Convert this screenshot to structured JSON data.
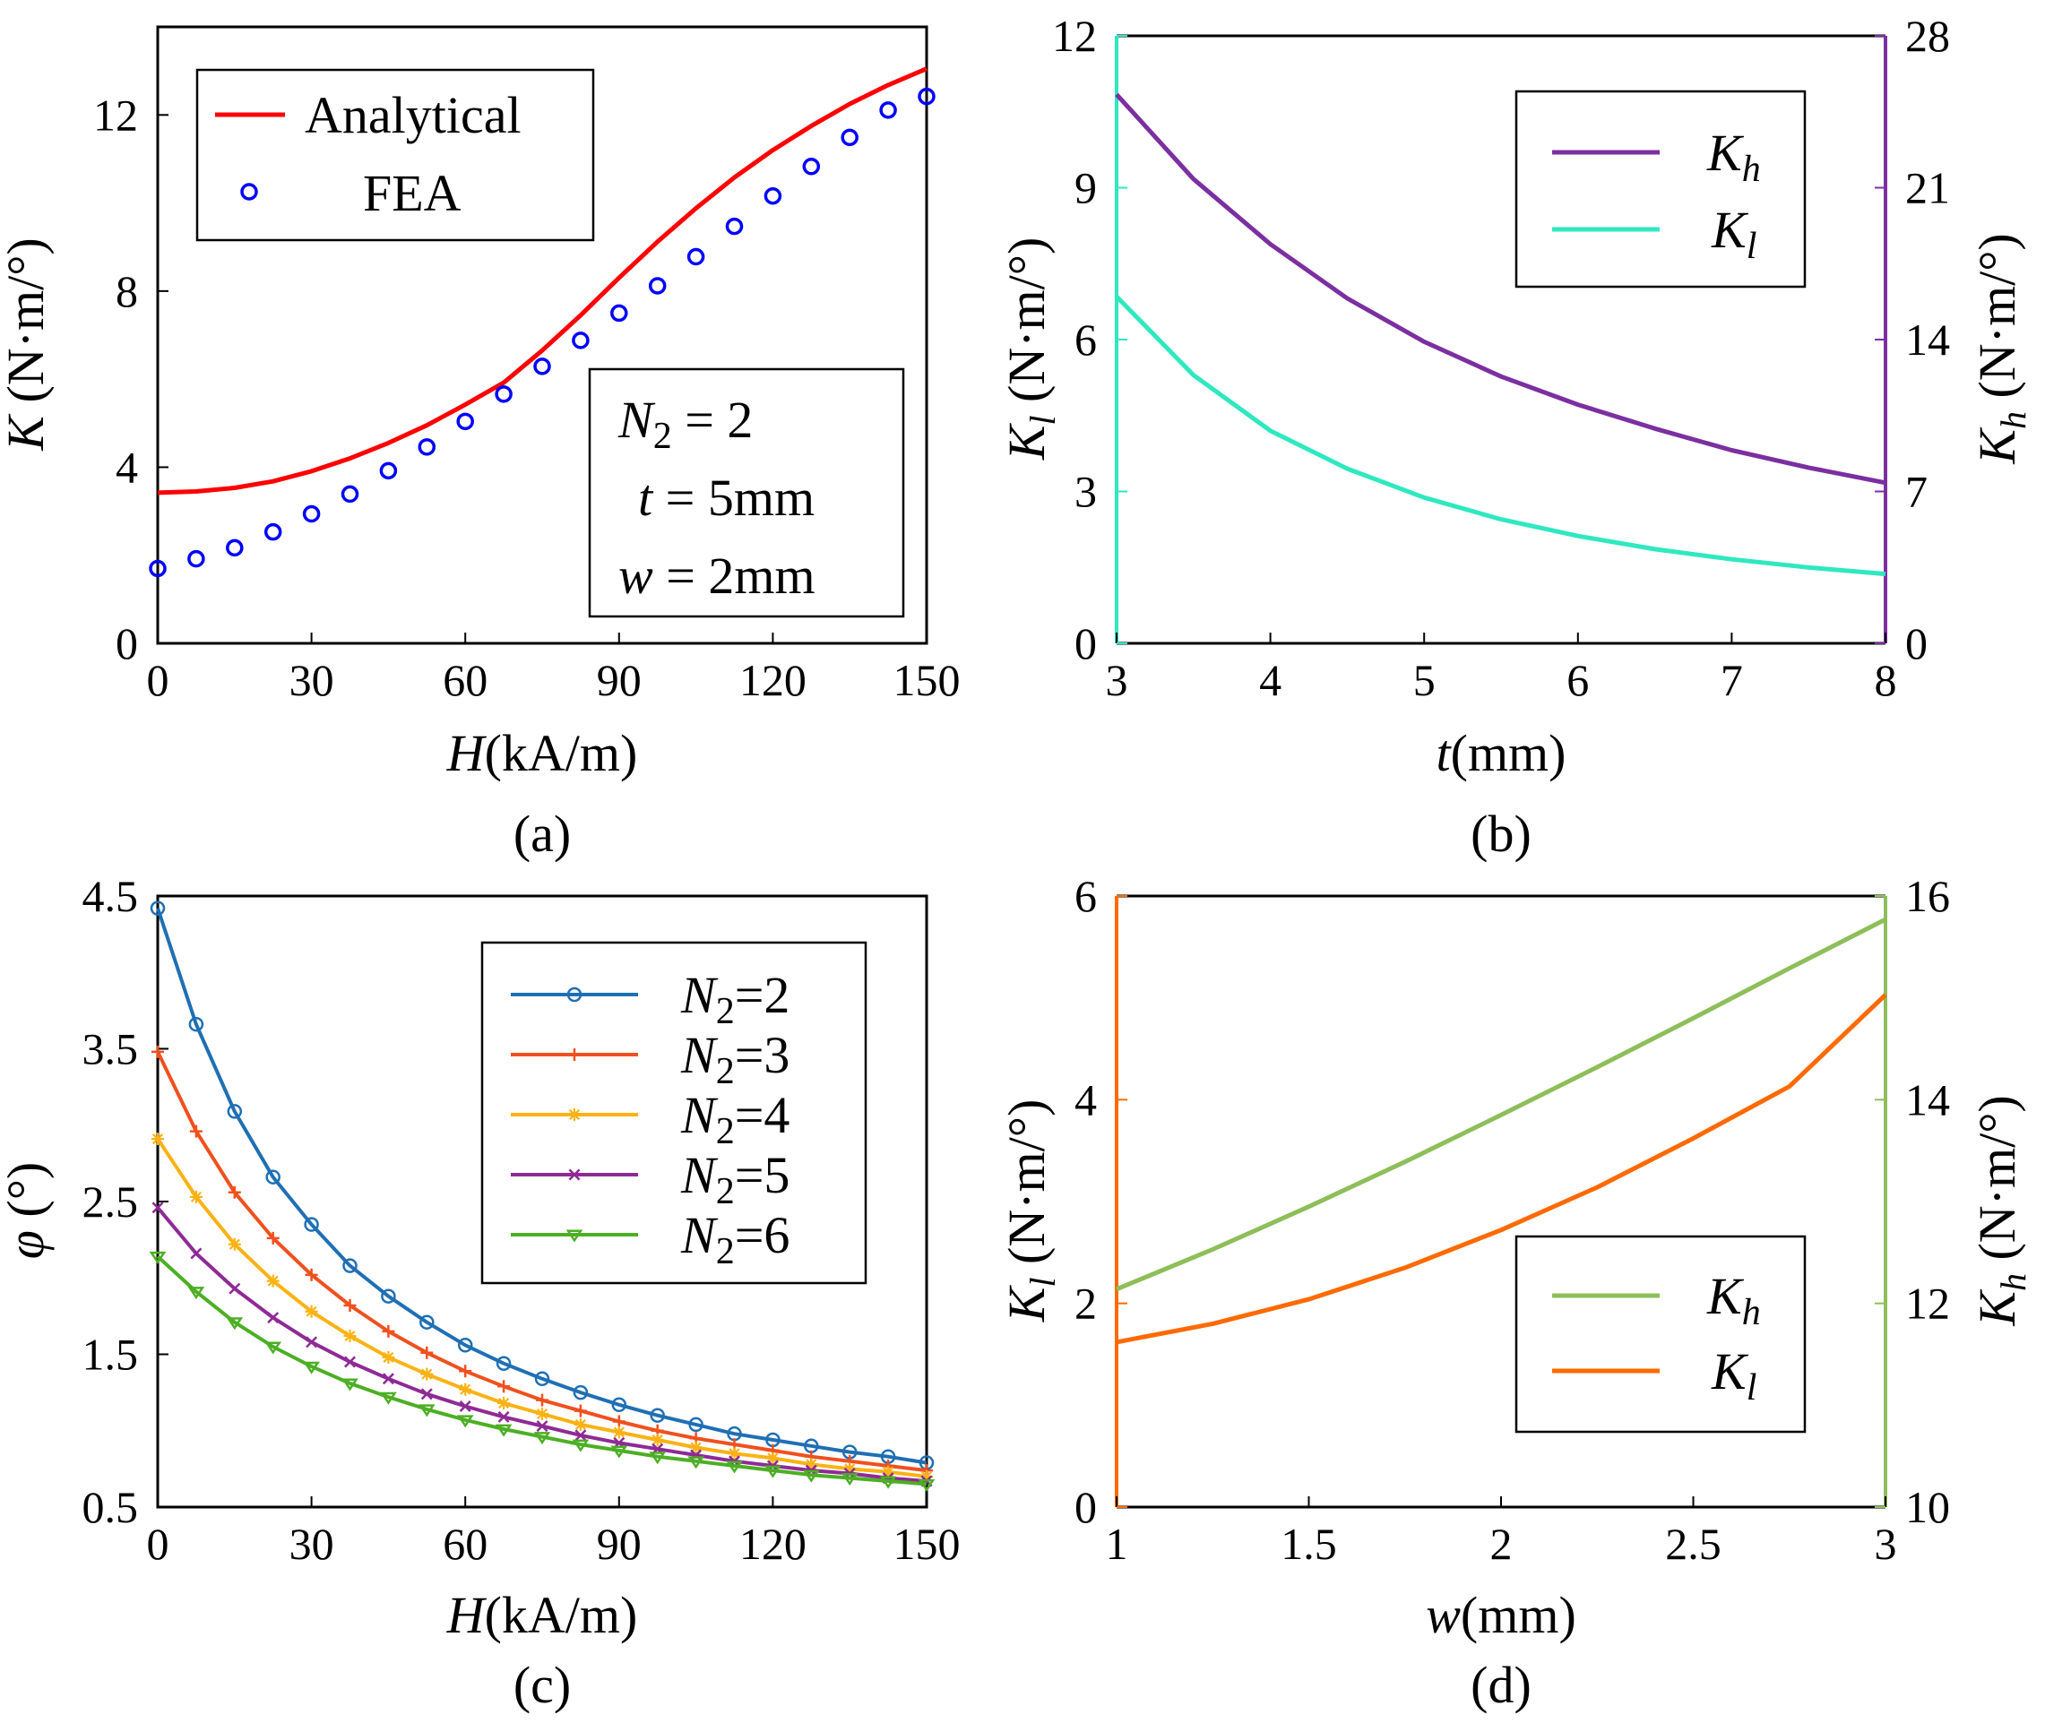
{
  "chart_data": [
    {
      "id": "a",
      "type": "line",
      "caption": "(a)",
      "xlabel": "H(kA/m)",
      "ylabel": "K (N·m/°)",
      "xlim": [
        0,
        150
      ],
      "ylim": [
        0,
        14
      ],
      "xticks": [
        "0",
        "30",
        "60",
        "90",
        "120",
        "150"
      ],
      "yticks": [
        "0",
        "4",
        "8",
        "12"
      ],
      "legend": [
        "Analytical",
        "FEA"
      ],
      "annotation": [
        "N2 = 2",
        "t = 5mm",
        "w = 2mm"
      ],
      "series": [
        {
          "name": "Analytical",
          "style": "line",
          "color": "#ff0000",
          "x": [
            0,
            7.5,
            15,
            22.5,
            30,
            37.5,
            45,
            52.5,
            60,
            67.5,
            75,
            82.5,
            90,
            97.5,
            105,
            112.5,
            120,
            127.5,
            135,
            142.5,
            150
          ],
          "y": [
            3.42,
            3.45,
            3.53,
            3.68,
            3.91,
            4.2,
            4.55,
            4.95,
            5.42,
            5.92,
            6.65,
            7.45,
            8.3,
            9.12,
            9.88,
            10.58,
            11.2,
            11.75,
            12.25,
            12.68,
            13.05
          ]
        },
        {
          "name": "FEA",
          "style": "markers",
          "color": "#0000ff",
          "x": [
            0,
            7.5,
            15,
            22.5,
            30,
            37.5,
            45,
            52.5,
            60,
            67.5,
            75,
            82.5,
            90,
            97.5,
            105,
            112.5,
            120,
            127.5,
            135,
            142.5,
            150
          ],
          "y": [
            1.7,
            1.92,
            2.17,
            2.53,
            2.94,
            3.39,
            3.92,
            4.46,
            5.04,
            5.66,
            6.29,
            6.88,
            7.5,
            8.12,
            8.78,
            9.47,
            10.16,
            10.83,
            11.49,
            12.11,
            12.42
          ]
        }
      ]
    },
    {
      "id": "b",
      "type": "line",
      "caption": "(b)",
      "xlabel": "t(mm)",
      "ylabel_left": "Kl (N·m/°)",
      "ylabel_right": "Kh (N·m/°)",
      "xlim": [
        3,
        8
      ],
      "ylim_left": [
        0,
        12
      ],
      "ylim_right": [
        0,
        28
      ],
      "xticks": [
        "3",
        "4",
        "5",
        "6",
        "7",
        "8"
      ],
      "yticks_left": [
        "0",
        "3",
        "6",
        "9",
        "12"
      ],
      "yticks_right": [
        "0",
        "7",
        "14",
        "21",
        "28"
      ],
      "legend": [
        "Kh",
        "Kl"
      ],
      "series": [
        {
          "name": "Kh",
          "axis": "right",
          "color": "#7b2fa0",
          "x": [
            3,
            3.5,
            4,
            4.5,
            5,
            5.5,
            6,
            6.5,
            7,
            7.5,
            8
          ],
          "y": [
            25.3,
            21.4,
            18.4,
            15.9,
            13.9,
            12.3,
            11.0,
            9.9,
            8.9,
            8.1,
            7.4
          ]
        },
        {
          "name": "Kl",
          "axis": "left",
          "color": "#2fe8c0",
          "x": [
            3,
            3.5,
            4,
            4.5,
            5,
            5.5,
            6,
            6.5,
            7,
            7.5,
            8
          ],
          "y": [
            6.85,
            5.3,
            4.2,
            3.45,
            2.88,
            2.45,
            2.12,
            1.86,
            1.66,
            1.5,
            1.37
          ]
        }
      ]
    },
    {
      "id": "c",
      "type": "line",
      "caption": "(c)",
      "xlabel": "H(kA/m)",
      "ylabel": "φ (°)",
      "xlim": [
        0,
        150
      ],
      "ylim": [
        0.5,
        4.5
      ],
      "xticks": [
        "0",
        "30",
        "60",
        "90",
        "120",
        "150"
      ],
      "yticks": [
        "0.5",
        "1.5",
        "2.5",
        "3.5",
        "4.5"
      ],
      "legend": [
        "N2=2",
        "N2=3",
        "N2=4",
        "N2=5",
        "N2=6"
      ],
      "x": [
        0,
        7.5,
        15,
        22.5,
        30,
        37.5,
        45,
        52.5,
        60,
        67.5,
        75,
        82.5,
        90,
        97.5,
        105,
        112.5,
        120,
        127.5,
        135,
        142.5,
        150
      ],
      "series": [
        {
          "name": "N2=2",
          "color": "#1f6fb4",
          "marker": "circle",
          "values": [
            4.42,
            3.66,
            3.09,
            2.66,
            2.35,
            2.08,
            1.88,
            1.71,
            1.56,
            1.44,
            1.34,
            1.25,
            1.17,
            1.1,
            1.04,
            0.98,
            0.94,
            0.9,
            0.86,
            0.83,
            0.79
          ]
        },
        {
          "name": "N2=3",
          "color": "#f0501e",
          "marker": "plus",
          "values": [
            3.48,
            2.96,
            2.56,
            2.26,
            2.02,
            1.82,
            1.65,
            1.51,
            1.39,
            1.29,
            1.2,
            1.13,
            1.06,
            1.0,
            0.95,
            0.91,
            0.87,
            0.83,
            0.8,
            0.77,
            0.74
          ]
        },
        {
          "name": "N2=4",
          "color": "#fbb214",
          "marker": "star",
          "values": [
            2.91,
            2.53,
            2.22,
            1.98,
            1.78,
            1.62,
            1.48,
            1.37,
            1.27,
            1.18,
            1.11,
            1.04,
            0.99,
            0.94,
            0.89,
            0.85,
            0.82,
            0.78,
            0.75,
            0.73,
            0.7
          ]
        },
        {
          "name": "N2=5",
          "color": "#8e2a96",
          "marker": "x",
          "values": [
            2.46,
            2.16,
            1.93,
            1.74,
            1.58,
            1.45,
            1.34,
            1.24,
            1.16,
            1.09,
            1.03,
            0.97,
            0.92,
            0.88,
            0.84,
            0.8,
            0.77,
            0.74,
            0.72,
            0.69,
            0.67
          ]
        },
        {
          "name": "N2=6",
          "color": "#4caf24",
          "marker": "triangle",
          "values": [
            2.14,
            1.91,
            1.71,
            1.55,
            1.42,
            1.31,
            1.22,
            1.14,
            1.07,
            1.01,
            0.96,
            0.91,
            0.87,
            0.83,
            0.8,
            0.77,
            0.74,
            0.71,
            0.69,
            0.67,
            0.65
          ]
        }
      ]
    },
    {
      "id": "d",
      "type": "line",
      "caption": "(d)",
      "xlabel": "w(mm)",
      "ylabel_left": "Kl (N·m/°)",
      "ylabel_right": "Kh (N·m/°)",
      "xlim": [
        1,
        3
      ],
      "ylim_left": [
        0,
        6
      ],
      "ylim_right": [
        10,
        16
      ],
      "xticks": [
        "1",
        "1.5",
        "2",
        "2.5",
        "3"
      ],
      "yticks_left": [
        "0",
        "2",
        "4",
        "6"
      ],
      "yticks_right": [
        "10",
        "12",
        "14",
        "16"
      ],
      "legend": [
        "Kh",
        "Kl"
      ],
      "series": [
        {
          "name": "Kh",
          "axis": "right",
          "color": "#8ebe5a",
          "x": [
            1,
            1.25,
            1.5,
            1.75,
            2,
            2.25,
            2.5,
            2.75,
            3
          ],
          "y": [
            12.14,
            12.53,
            12.95,
            13.39,
            13.85,
            14.32,
            14.8,
            15.29,
            15.77
          ]
        },
        {
          "name": "Kl",
          "axis": "left",
          "color": "#ff6a00",
          "x": [
            1,
            1.25,
            1.5,
            1.75,
            2,
            2.25,
            2.5,
            2.75,
            3
          ],
          "y": [
            1.62,
            1.8,
            2.04,
            2.35,
            2.72,
            3.14,
            3.62,
            4.13,
            5.03
          ]
        }
      ]
    }
  ]
}
